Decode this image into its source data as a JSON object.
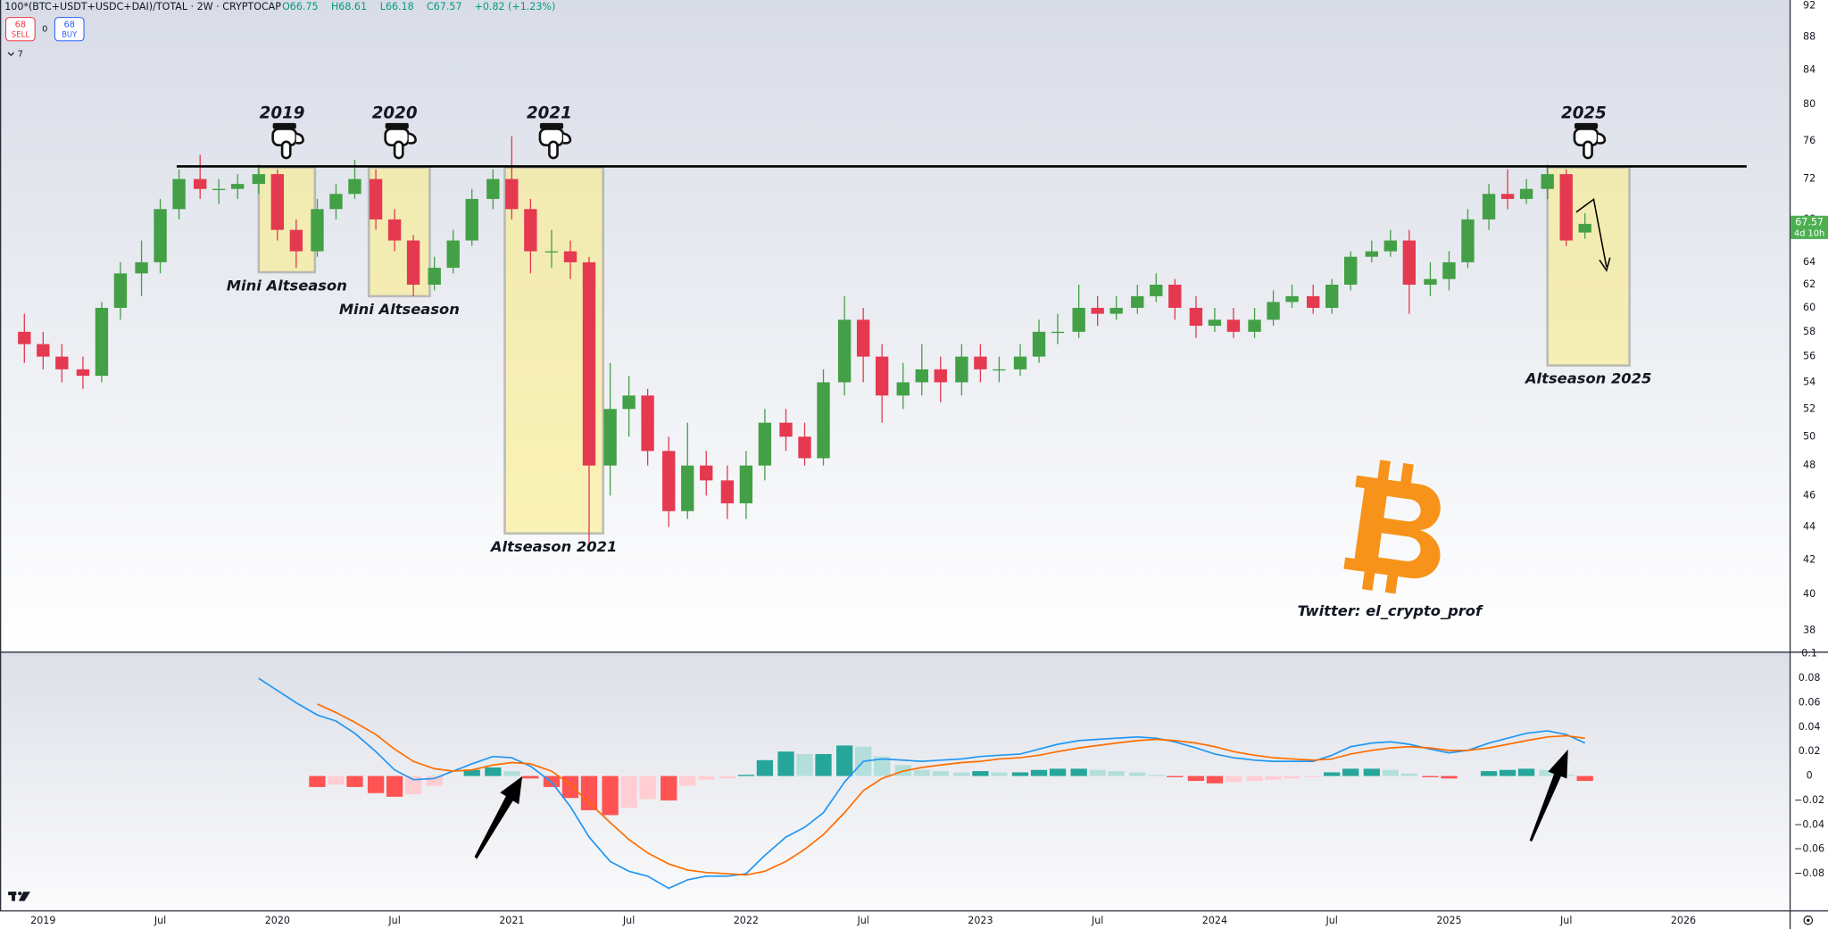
{
  "header": {
    "symbol": "100*(BTC+USDT+USDC+DAI)/TOTAL · 2W · CRYPTOCAP",
    "open": "O66.75",
    "high": "H68.61",
    "low": "L66.18",
    "close": "C67.57",
    "change": "+0.82 (+1.23%)",
    "sell_price": "68",
    "sell_label": "SELL",
    "spread": "0",
    "buy_price": "68",
    "buy_label": "BUY",
    "indicator_count": "7"
  },
  "annotations": {
    "credit": "Twitter: el_crypto_prof"
  },
  "chart_data": [
    {
      "type": "candlestick",
      "log": true,
      "grid": false,
      "up_color": "#43a047",
      "down_color": "#e53950",
      "xlim": [
        2018.816,
        2026.453
      ],
      "ylim": [
        36.95,
        92.76
      ],
      "yticks": [
        92,
        88,
        84,
        80,
        76,
        72,
        68,
        64,
        62,
        60,
        58,
        56,
        54,
        52,
        50,
        48,
        46,
        44,
        42,
        40,
        38
      ],
      "last_price": 67.57,
      "countdown": "4d 10h",
      "last_price_color": "#4caf50",
      "x": [
        2018.92,
        2019.0,
        2019.08,
        2019.17,
        2019.25,
        2019.33,
        2019.42,
        2019.5,
        2019.58,
        2019.67,
        2019.75,
        2019.83,
        2019.92,
        2020.0,
        2020.08,
        2020.17,
        2020.25,
        2020.33,
        2020.42,
        2020.5,
        2020.58,
        2020.67,
        2020.75,
        2020.83,
        2020.92,
        2021.0,
        2021.08,
        2021.17,
        2021.25,
        2021.33,
        2021.42,
        2021.5,
        2021.58,
        2021.67,
        2021.75,
        2021.83,
        2021.92,
        2022.0,
        2022.08,
        2022.17,
        2022.25,
        2022.33,
        2022.42,
        2022.5,
        2022.58,
        2022.67,
        2022.75,
        2022.83,
        2022.92,
        2023.0,
        2023.08,
        2023.17,
        2023.25,
        2023.33,
        2023.42,
        2023.5,
        2023.58,
        2023.67,
        2023.75,
        2023.83,
        2023.92,
        2024.0,
        2024.08,
        2024.17,
        2024.25,
        2024.33,
        2024.42,
        2024.5,
        2024.58,
        2024.67,
        2024.75,
        2024.83,
        2024.92,
        2025.0,
        2025.08,
        2025.17,
        2025.25,
        2025.33,
        2025.42,
        2025.5,
        2025.58
      ],
      "open": [
        58,
        57,
        56,
        55,
        54.5,
        60,
        63,
        64,
        69,
        72,
        71,
        71,
        71.5,
        72.5,
        67,
        65,
        69,
        70.5,
        72,
        68,
        66,
        62,
        63.5,
        66,
        70,
        72,
        69,
        65,
        65,
        64,
        48,
        52,
        53,
        49,
        45,
        48,
        47,
        45.5,
        48,
        51,
        50,
        48.5,
        54,
        59,
        56,
        53,
        54,
        55,
        54,
        56,
        55,
        55,
        56,
        58,
        58,
        60,
        59.5,
        60,
        61,
        62,
        60,
        58.5,
        59,
        58,
        59,
        60.5,
        61,
        60,
        62,
        64.5,
        65,
        66,
        62,
        62.5,
        64,
        68,
        70.5,
        70,
        71,
        72.5,
        66.75
      ],
      "high": [
        59.5,
        58,
        57,
        56,
        60.5,
        64,
        66,
        70,
        73,
        74.5,
        72,
        72.5,
        73.5,
        73,
        68,
        70,
        71.5,
        74,
        73,
        69,
        66.5,
        64.5,
        67,
        71,
        73,
        76.5,
        70,
        67,
        66,
        64.5,
        55.5,
        54.5,
        53.5,
        50,
        51,
        49,
        48,
        49,
        52,
        52,
        51,
        55,
        61,
        60,
        57,
        55.5,
        57,
        56,
        57,
        57,
        56,
        57,
        59,
        59.5,
        62,
        61,
        61,
        62,
        63,
        62.5,
        61,
        60,
        60,
        60,
        61.5,
        62,
        62,
        62.5,
        65,
        66,
        67,
        67,
        64,
        65,
        69,
        71.5,
        73,
        72,
        73.5,
        73,
        68.61
      ],
      "low": [
        55.5,
        55,
        54,
        53.5,
        54,
        59,
        61,
        63,
        68,
        70,
        69.5,
        70,
        70.5,
        66,
        63.5,
        64.5,
        68,
        70,
        67,
        65,
        61,
        61.5,
        63,
        65.5,
        69,
        68,
        63,
        63.5,
        62.5,
        43,
        46,
        50,
        48,
        44,
        44.5,
        46,
        44.5,
        44.5,
        47,
        49,
        48,
        48,
        53,
        54,
        51,
        52,
        53,
        52.5,
        53,
        54,
        54,
        54.5,
        55.5,
        57,
        57.5,
        58.5,
        59,
        59.5,
        60.5,
        59,
        57.5,
        58,
        57.5,
        57.5,
        58.5,
        60,
        59.5,
        59.5,
        61.5,
        64,
        64.5,
        59.5,
        61,
        61.5,
        63.5,
        67,
        69,
        69.5,
        70,
        65.5,
        66.18
      ],
      "close": [
        57,
        56,
        55,
        54.5,
        60,
        63,
        64,
        69,
        72,
        71,
        71,
        71.5,
        72.5,
        67,
        65,
        69,
        70.5,
        72,
        68,
        66,
        62,
        63.5,
        66,
        70,
        72,
        69,
        65,
        65,
        64,
        48,
        52,
        53,
        49,
        45,
        48,
        47,
        45.5,
        48,
        51,
        50,
        48.5,
        54,
        59,
        56,
        53,
        54,
        55,
        54,
        56,
        55,
        55,
        56,
        58,
        58,
        60,
        59.5,
        60,
        61,
        62,
        60,
        58.5,
        59,
        58,
        59,
        60.5,
        61,
        60,
        62,
        64.5,
        65,
        66,
        62,
        62.5,
        64,
        68,
        70.5,
        70,
        71,
        72.5,
        66,
        67.57
      ],
      "resistance": {
        "value": 73.3,
        "x": [
          2019.57,
          2026.27
        ],
        "color": "#000000"
      },
      "zones": [
        {
          "year": "2019",
          "label": "Mini Altseason",
          "x": [
            2019.92,
            2020.16
          ],
          "y": [
            63.1,
            73.2
          ]
        },
        {
          "year": "2020",
          "label": "Mini Altseason",
          "x": [
            2020.39,
            2020.65
          ],
          "y": [
            61.0,
            73.2
          ]
        },
        {
          "year": "2021",
          "label": "Altseason 2021",
          "x": [
            2020.97,
            2021.39
          ],
          "y": [
            43.6,
            73.2
          ]
        },
        {
          "year": "2025",
          "label": "Altseason 2025",
          "x": [
            2025.42,
            2025.77
          ],
          "y": [
            55.3,
            73.2
          ]
        }
      ]
    },
    {
      "type": "macd",
      "xlim": [
        2018.816,
        2026.453
      ],
      "ylim": [
        -0.11,
        0.1
      ],
      "yticks": [
        0.1,
        0.08,
        0.06,
        0.04,
        0.02,
        0,
        {
          "value": -0.02,
          "label": "−0.02"
        },
        {
          "value": -0.04,
          "label": "−0.04"
        },
        {
          "value": -0.06,
          "label": "−0.06"
        },
        {
          "value": -0.08,
          "label": "−0.08"
        }
      ],
      "xticks": [
        {
          "value": 2019,
          "label": "2019"
        },
        {
          "value": 2019.5,
          "label": "Jul"
        },
        {
          "value": 2020,
          "label": "2020"
        },
        {
          "value": 2020.5,
          "label": "Jul"
        },
        {
          "value": 2021,
          "label": "2021"
        },
        {
          "value": 2021.5,
          "label": "Jul"
        },
        {
          "value": 2022,
          "label": "2022"
        },
        {
          "value": 2022.5,
          "label": "Jul"
        },
        {
          "value": 2023,
          "label": "2023"
        },
        {
          "value": 2023.5,
          "label": "Jul"
        },
        {
          "value": 2024,
          "label": "2024"
        },
        {
          "value": 2024.5,
          "label": "Jul"
        },
        {
          "value": 2025,
          "label": "2025"
        },
        {
          "value": 2025.5,
          "label": "Jul"
        },
        {
          "value": 2026,
          "label": "2026"
        }
      ],
      "x": [
        2019.92,
        2020.0,
        2020.08,
        2020.17,
        2020.25,
        2020.33,
        2020.42,
        2020.5,
        2020.58,
        2020.67,
        2020.75,
        2020.83,
        2020.92,
        2021.0,
        2021.08,
        2021.17,
        2021.25,
        2021.33,
        2021.42,
        2021.5,
        2021.58,
        2021.67,
        2021.75,
        2021.83,
        2021.92,
        2022.0,
        2022.08,
        2022.17,
        2022.25,
        2022.33,
        2022.42,
        2022.5,
        2022.58,
        2022.67,
        2022.75,
        2022.83,
        2022.92,
        2023.0,
        2023.08,
        2023.17,
        2023.25,
        2023.33,
        2023.42,
        2023.5,
        2023.58,
        2023.67,
        2023.75,
        2023.83,
        2023.92,
        2024.0,
        2024.08,
        2024.17,
        2024.25,
        2024.33,
        2024.42,
        2024.5,
        2024.58,
        2024.67,
        2024.75,
        2024.83,
        2024.92,
        2025.0,
        2025.08,
        2025.17,
        2025.25,
        2025.33,
        2025.42,
        2025.5,
        2025.58
      ],
      "histogram": {
        "colors": [
          "#26a69a",
          "#b2dfdb",
          "#ff5252",
          "#ffcdd2"
        ],
        "values": [
          null,
          null,
          null,
          -0.009,
          -0.007,
          -0.009,
          -0.014,
          -0.017,
          -0.015,
          -0.008,
          0,
          0.005,
          0.007,
          0.004,
          -0.002,
          -0.009,
          -0.018,
          -0.028,
          -0.032,
          -0.026,
          -0.019,
          -0.02,
          -0.008,
          -0.003,
          -0.002,
          0.001,
          0.013,
          0.02,
          0.018,
          0.018,
          0.025,
          0.024,
          0.016,
          0.009,
          0.005,
          0.004,
          0.003,
          0.004,
          0.003,
          0.003,
          0.005,
          0.006,
          0.006,
          0.005,
          0.004,
          0.003,
          0.001,
          -0.001,
          -0.004,
          -0.006,
          -0.005,
          -0.004,
          -0.003,
          -0.002,
          -0.001,
          0.003,
          0.006,
          0.006,
          0.005,
          0.002,
          -0.001,
          -0.002,
          0,
          0.004,
          0.005,
          0.006,
          0.005,
          0.001,
          -0.004
        ]
      },
      "series": [
        {
          "color": "#2196f3",
          "values": [
            0.08,
            0.07,
            0.06,
            0.05,
            0.045,
            0.035,
            0.02,
            0.005,
            -0.003,
            -0.002,
            0.004,
            0.01,
            0.016,
            0.015,
            0.008,
            -0.005,
            -0.025,
            -0.05,
            -0.07,
            -0.078,
            -0.082,
            -0.092,
            -0.085,
            -0.082,
            -0.082,
            -0.08,
            -0.065,
            -0.05,
            -0.042,
            -0.03,
            -0.005,
            0.012,
            0.014,
            0.013,
            0.012,
            0.013,
            0.014,
            0.016,
            0.017,
            0.018,
            0.022,
            0.026,
            0.029,
            0.03,
            0.031,
            0.032,
            0.031,
            0.028,
            0.023,
            0.018,
            0.015,
            0.013,
            0.012,
            0.012,
            0.012,
            0.017,
            0.024,
            0.027,
            0.028,
            0.026,
            0.022,
            0.019,
            0.021,
            0.027,
            0.031,
            0.035,
            0.037,
            0.034,
            0.027
          ]
        },
        {
          "color": "#ff6d00",
          "values": [
            null,
            null,
            null,
            0.059,
            0.052,
            0.044,
            0.034,
            0.022,
            0.012,
            0.006,
            0.004,
            0.005,
            0.009,
            0.011,
            0.01,
            0.004,
            -0.007,
            -0.022,
            -0.038,
            -0.052,
            -0.063,
            -0.072,
            -0.077,
            -0.079,
            -0.08,
            -0.081,
            -0.078,
            -0.07,
            -0.06,
            -0.048,
            -0.03,
            -0.012,
            -0.002,
            0.004,
            0.007,
            0.009,
            0.011,
            0.012,
            0.014,
            0.015,
            0.017,
            0.02,
            0.023,
            0.025,
            0.027,
            0.029,
            0.03,
            0.029,
            0.027,
            0.024,
            0.02,
            0.017,
            0.015,
            0.014,
            0.013,
            0.014,
            0.018,
            0.021,
            0.023,
            0.024,
            0.023,
            0.021,
            0.021,
            0.023,
            0.026,
            0.029,
            0.032,
            0.033,
            0.031
          ]
        }
      ]
    }
  ]
}
